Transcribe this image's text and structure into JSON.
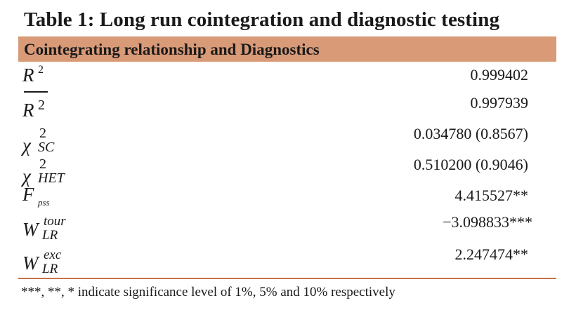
{
  "table": {
    "title": "Table 1: Long run cointegration and diagnostic testing",
    "header": "Cointegrating relationship and Diagnostics",
    "rows": [
      {
        "label_main": "R",
        "label_sup": "2",
        "label_sub": "",
        "value": "0.999402"
      },
      {
        "label_main": "R",
        "label_sup": "2",
        "label_sub": "",
        "value": "0.997939"
      },
      {
        "label_main": "χ",
        "label_sup": "2",
        "label_sub": "SC",
        "value": "0.034780 (0.8567)"
      },
      {
        "label_main": "χ",
        "label_sup": "2",
        "label_sub": "HET",
        "value": "0.510200 (0.9046)"
      },
      {
        "label_main": "F",
        "label_sup": "",
        "label_sub": "pss",
        "value": "4.415527**"
      },
      {
        "label_main": "W",
        "label_sup": "tour",
        "label_sub": "LR",
        "value": "−3.098833***"
      },
      {
        "label_main": "W",
        "label_sup": "exc",
        "label_sub": "LR",
        "value": "2.247474**"
      }
    ],
    "footnote": "***, **, * indicate significance level of 1%, 5% and 10% respectively"
  },
  "colors": {
    "header_bg": "#d99a78",
    "rule": "#c8714a"
  }
}
